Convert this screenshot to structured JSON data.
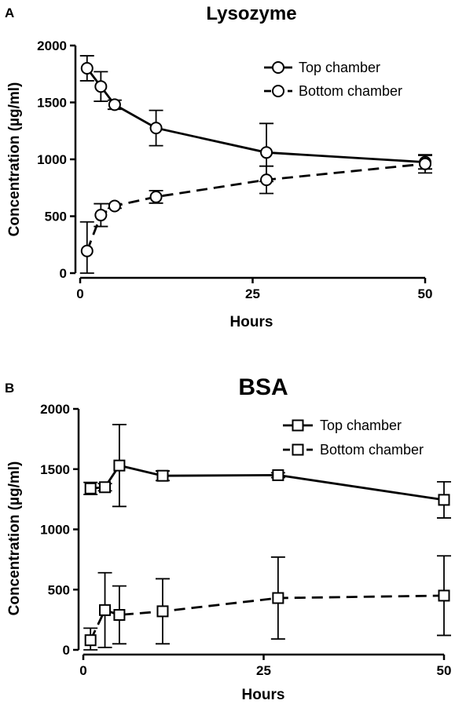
{
  "chart_data": [
    {
      "panel": "A",
      "type": "line",
      "title": "Lysozyme",
      "xlabel": "Hours",
      "ylabel": "Concentration (µg/ml)",
      "xlim": [
        0,
        50
      ],
      "ylim": [
        0,
        2000
      ],
      "xticks": [
        0,
        25,
        50
      ],
      "yticks": [
        0,
        500,
        1000,
        1500,
        2000
      ],
      "grid": false,
      "legend_position": "top-right",
      "marker": "circle",
      "series": [
        {
          "name": "Top chamber",
          "line_style": "solid",
          "x": [
            1,
            3,
            5,
            11,
            27,
            50
          ],
          "y": [
            1800,
            1640,
            1480,
            1275,
            1060,
            975
          ],
          "error": [
            110,
            130,
            40,
            155,
            255,
            60
          ]
        },
        {
          "name": "Bottom chamber",
          "line_style": "dashed",
          "x": [
            1,
            3,
            5,
            11,
            27,
            50
          ],
          "y": [
            195,
            510,
            590,
            670,
            820,
            960
          ],
          "error": [
            255,
            100,
            20,
            55,
            120,
            80
          ]
        }
      ]
    },
    {
      "panel": "B",
      "type": "line",
      "title": "BSA",
      "xlabel": "Hours",
      "ylabel": "Concentration (µg/ml)",
      "xlim": [
        0,
        50
      ],
      "ylim": [
        0,
        2000
      ],
      "xticks": [
        0,
        25,
        50
      ],
      "yticks": [
        0,
        500,
        1000,
        1500,
        2000
      ],
      "grid": false,
      "legend_position": "top-right",
      "marker": "square",
      "series": [
        {
          "name": "Top chamber",
          "line_style": "solid",
          "x": [
            1,
            3,
            5,
            11,
            27,
            50
          ],
          "y": [
            1340,
            1350,
            1530,
            1445,
            1450,
            1245
          ],
          "error": [
            50,
            30,
            340,
            40,
            20,
            150
          ]
        },
        {
          "name": "Bottom chamber",
          "line_style": "dashed",
          "x": [
            1,
            3,
            5,
            11,
            27,
            50
          ],
          "y": [
            80,
            330,
            290,
            320,
            430,
            450
          ],
          "error": [
            100,
            310,
            240,
            270,
            340,
            330
          ]
        }
      ]
    }
  ]
}
